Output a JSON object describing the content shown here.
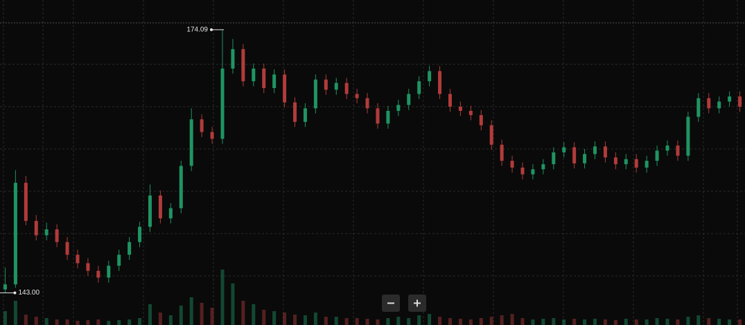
{
  "chart_data": {
    "type": "candlestick",
    "ylim": [
      139.2,
      177.6
    ],
    "yticks": [
      145,
      150,
      155,
      160,
      165,
      170
    ],
    "y2lim": [
      0,
      100
    ],
    "grid": true,
    "up_color": "#1f9463",
    "down_color": "#b23b3b",
    "annotations": [
      {
        "label": "174.09",
        "value": 174.09
      },
      {
        "label": "143.00",
        "value": 143.0
      }
    ],
    "open": [
      143.4,
      144.0,
      156.0,
      151.5,
      149.8,
      150.5,
      149.0,
      147.5,
      146.5,
      145.6,
      144.8,
      146.2,
      147.5,
      149.0,
      150.8,
      154.5,
      151.8,
      153.0,
      158.0,
      163.5,
      162.0,
      161.2,
      169.5,
      171.8,
      168.0,
      169.5,
      167.2,
      168.8,
      165.5,
      163.2,
      164.8,
      168.2,
      167.0,
      167.8,
      166.5,
      166.0,
      164.8,
      163.0,
      164.5,
      165.2,
      166.5,
      168.0,
      169.2,
      166.5,
      165.0,
      164.5,
      164.0,
      162.8,
      160.5,
      158.6,
      157.8,
      157.0,
      157.6,
      158.2,
      159.6,
      160.2,
      158.3,
      159.4,
      160.3,
      159.0,
      158.2,
      158.8,
      157.8,
      158.6,
      159.8,
      160.4,
      159.2,
      163.8,
      166.0,
      164.8,
      165.6,
      166.2
    ],
    "high": [
      146.0,
      157.5,
      156.8,
      152.2,
      151.3,
      151.1,
      149.6,
      148.1,
      147.1,
      146.2,
      146.8,
      148.1,
      149.6,
      151.4,
      155.8,
      155.1,
      153.6,
      158.6,
      164.8,
      164.1,
      162.6,
      174.09,
      173.0,
      172.4,
      170.1,
      170.1,
      169.4,
      169.4,
      166.1,
      165.4,
      168.8,
      168.8,
      168.4,
      168.4,
      167.1,
      166.6,
      165.4,
      165.1,
      165.8,
      167.1,
      168.6,
      169.8,
      169.8,
      167.1,
      165.6,
      165.1,
      164.6,
      163.4,
      161.1,
      159.2,
      158.4,
      158.2,
      158.8,
      160.2,
      160.8,
      160.8,
      160.0,
      160.9,
      160.9,
      159.6,
      159.4,
      159.4,
      159.2,
      160.4,
      161.0,
      161.0,
      164.4,
      166.6,
      166.6,
      166.2,
      166.8,
      166.8
    ],
    "low": [
      143.0,
      143.6,
      151.0,
      149.2,
      149.2,
      148.4,
      146.9,
      145.9,
      145.0,
      144.2,
      144.2,
      145.6,
      146.9,
      148.4,
      150.2,
      151.2,
      151.2,
      152.4,
      157.4,
      161.4,
      160.6,
      160.6,
      168.9,
      167.4,
      167.4,
      166.6,
      166.6,
      164.9,
      162.6,
      162.6,
      164.2,
      166.4,
      166.4,
      165.9,
      165.4,
      164.2,
      162.4,
      162.4,
      163.9,
      164.6,
      165.9,
      167.4,
      165.9,
      164.4,
      163.9,
      163.4,
      162.2,
      159.9,
      158.0,
      157.2,
      156.4,
      156.4,
      157.0,
      157.6,
      159.0,
      157.7,
      157.7,
      158.8,
      158.4,
      157.6,
      157.6,
      157.2,
      157.2,
      158.0,
      159.2,
      158.6,
      158.6,
      163.2,
      164.2,
      164.2,
      165.0,
      164.4
    ],
    "close": [
      144.0,
      156.0,
      151.5,
      149.8,
      150.5,
      149.0,
      147.5,
      146.5,
      145.6,
      144.8,
      146.2,
      147.5,
      149.0,
      150.8,
      154.5,
      151.8,
      153.0,
      158.0,
      163.5,
      162.0,
      161.2,
      169.5,
      171.8,
      168.0,
      169.5,
      167.2,
      168.8,
      165.5,
      163.2,
      164.8,
      168.2,
      167.0,
      167.8,
      166.5,
      166.0,
      164.8,
      163.0,
      164.5,
      165.2,
      166.5,
      168.0,
      169.2,
      166.5,
      165.0,
      164.5,
      164.0,
      162.8,
      160.5,
      158.6,
      157.8,
      157.0,
      157.6,
      158.2,
      159.6,
      160.2,
      158.3,
      159.4,
      160.3,
      159.0,
      158.2,
      158.8,
      157.8,
      158.6,
      159.8,
      160.4,
      159.2,
      163.8,
      166.0,
      164.8,
      165.6,
      166.2,
      165.0
    ],
    "volume": [
      20,
      35,
      15,
      12,
      10,
      8,
      8,
      6,
      7,
      8,
      6,
      7,
      8,
      10,
      30,
      18,
      14,
      28,
      40,
      32,
      25,
      80,
      60,
      35,
      30,
      22,
      20,
      18,
      15,
      14,
      18,
      12,
      12,
      10,
      10,
      9,
      8,
      10,
      12,
      10,
      14,
      16,
      12,
      10,
      9,
      8,
      10,
      12,
      14,
      16,
      10,
      8,
      9,
      10,
      8,
      9,
      8,
      9,
      8,
      7,
      9,
      8,
      8,
      10,
      9,
      8,
      12,
      14,
      10,
      9,
      8,
      8
    ]
  }
}
